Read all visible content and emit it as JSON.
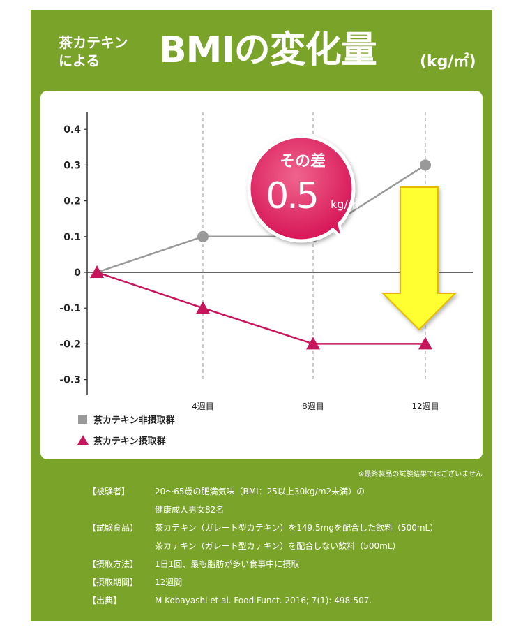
{
  "header": {
    "line1": "茶カテキン",
    "line2": "による",
    "main": "BMIの変化量",
    "unit": "(kg/㎡)"
  },
  "callout": {
    "label": "その差",
    "value": "0.5",
    "unit": "kg/㎡"
  },
  "chart_data": {
    "type": "line",
    "x_categories": [
      "0",
      "4週目",
      "8週目",
      "12週目"
    ],
    "x_tick_labels": [
      "4週目",
      "8週目",
      "12週目"
    ],
    "y_ticks": [
      0.4,
      0.3,
      0.2,
      0.1,
      0,
      -0.1,
      -0.2,
      -0.3
    ],
    "y_tick_labels": [
      "0.4",
      "0.3",
      "0.2",
      "0.1",
      "0",
      "-0.1",
      "-0.2",
      "-0.3"
    ],
    "ylim": [
      -0.34,
      0.44
    ],
    "grid": "vertical dashed",
    "legend_position": "bottom-left",
    "series": [
      {
        "name": "茶カテキン非摂取群",
        "marker": "square",
        "color": "#999999",
        "values": [
          0,
          0.1,
          0.1,
          0.3
        ]
      },
      {
        "name": "茶カテキン摂取群",
        "marker": "triangle",
        "color": "#c8145a",
        "values": [
          0,
          -0.1,
          -0.2,
          -0.2
        ]
      }
    ]
  },
  "note": "※最終製品の試験結果ではございません",
  "details": [
    {
      "key": "【被験者】",
      "value": "20～65歳の肥満気味（BMI：25以上30kg/m2未満）の"
    },
    {
      "key": "",
      "value": "健康成人男女82名"
    },
    {
      "key": "【試験食品】",
      "value": "茶カテキン（ガレート型カテキン）を149.5mgを配合した飲料（500mL）"
    },
    {
      "key": "",
      "value": "茶カテキン（ガレート型カテキン）を配合しない飲料（500mL）"
    },
    {
      "key": "【摂取方法】",
      "value": "1日1回、最も脂肪が多い食事中に摂取"
    },
    {
      "key": "【摂取期間】",
      "value": "12週間"
    },
    {
      "key": "【出典】",
      "value": "M Kobayashi et al. Food Funct. 2016; 7(1): 498-507."
    }
  ],
  "colors": {
    "panel": "#7aa32a",
    "pink": "#c8145a",
    "gray": "#999999",
    "arrow": "#ffff33"
  }
}
